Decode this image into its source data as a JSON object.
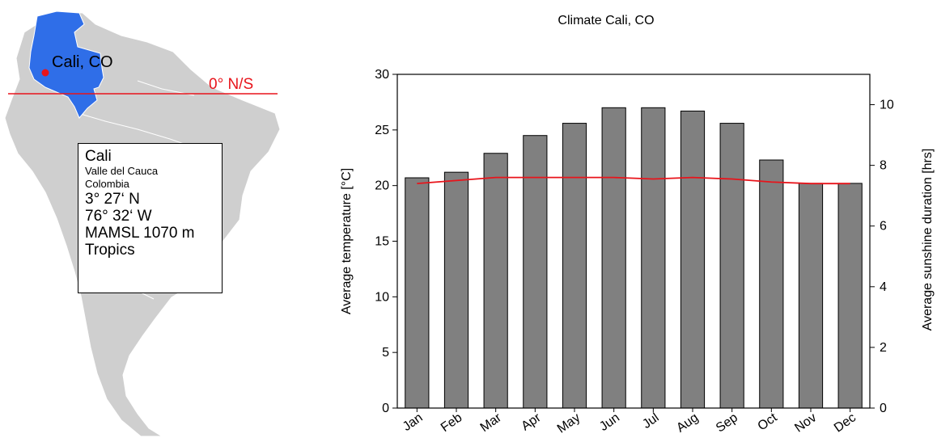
{
  "map": {
    "city_marker_label": "Cali, CO",
    "equator_label": "0° N/S",
    "colors": {
      "country": "#2f6ee8",
      "continent": "#c8c8c8",
      "equator": "#e8141b",
      "city_dot": "#e8141b"
    },
    "info": {
      "city": "Cali",
      "region": "Valle del Cauca",
      "country": "Colombia",
      "lat": "3° 27‘ N",
      "lon": "76° 32‘ W",
      "elevation": "MAMSL 1070 m",
      "climate_zone": "Tropics"
    }
  },
  "chart_data": {
    "type": "bar",
    "title": "Climate Cali, CO",
    "categories": [
      "Jan",
      "Feb",
      "Mar",
      "Apr",
      "May",
      "Jun",
      "Jul",
      "Aug",
      "Sep",
      "Oct",
      "Nov",
      "Dec"
    ],
    "series": [
      {
        "type": "bar",
        "axis": "left",
        "color": "#808080",
        "values": [
          20.7,
          21.2,
          22.9,
          24.5,
          25.6,
          27.0,
          27.0,
          26.7,
          25.6,
          22.3,
          20.2,
          20.2
        ]
      },
      {
        "type": "line",
        "axis": "right",
        "color": "#e8141b",
        "values": [
          7.4,
          7.5,
          7.6,
          7.6,
          7.6,
          7.6,
          7.55,
          7.6,
          7.55,
          7.45,
          7.4,
          7.4
        ]
      }
    ],
    "ylabel": "Average temperature [°C]",
    "ylim": [
      0,
      30
    ],
    "yticks": [
      0,
      5,
      10,
      15,
      20,
      25,
      30
    ],
    "y2label": "Average sunshine duration [hrs]",
    "y2lim": [
      0,
      11
    ],
    "y2ticks": [
      0,
      2,
      4,
      6,
      8,
      10
    ],
    "grid": false
  }
}
